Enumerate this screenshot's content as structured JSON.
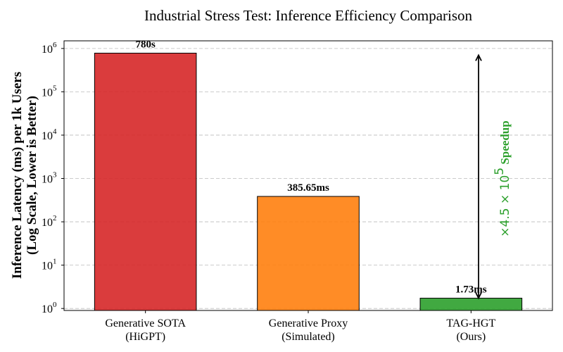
{
  "chart_data": {
    "type": "bar",
    "title": "Industrial Stress Test: Inference Efficiency Comparison",
    "ylabel_lines": [
      "Inference Latency (ms) per 1k Users",
      "(Log Scale, Lower is Better)"
    ],
    "yscale": "log",
    "ylim": [
      0.9,
      1500000
    ],
    "yticks": [
      {
        "value": 1,
        "base": "10",
        "exp": "0"
      },
      {
        "value": 10,
        "base": "10",
        "exp": "1"
      },
      {
        "value": 100,
        "base": "10",
        "exp": "2"
      },
      {
        "value": 1000,
        "base": "10",
        "exp": "3"
      },
      {
        "value": 10000,
        "base": "10",
        "exp": "4"
      },
      {
        "value": 100000,
        "base": "10",
        "exp": "5"
      },
      {
        "value": 1000000,
        "base": "10",
        "exp": "6"
      }
    ],
    "grid": "horizontal dashed",
    "categories": [
      {
        "line1": "Generative SOTA",
        "line2": "(HiGPT)",
        "value": 780000,
        "label": "780s",
        "color": "#d62728"
      },
      {
        "line1": "Generative Proxy",
        "line2": "(Simulated)",
        "value": 385.65,
        "label": "385.65ms",
        "color": "#ff7f0e"
      },
      {
        "line1": "TAG-HGT",
        "line2": "(Ours)",
        "value": 1.73,
        "label": "1.73ms",
        "color": "#2ca02c"
      }
    ],
    "annotation": {
      "prefix": "×4.5 × 10",
      "exp": "5",
      "suffix": " Speedup",
      "color": "#2ca02c",
      "arrow_from_value": 700000,
      "arrow_to_value": 1.73
    }
  }
}
